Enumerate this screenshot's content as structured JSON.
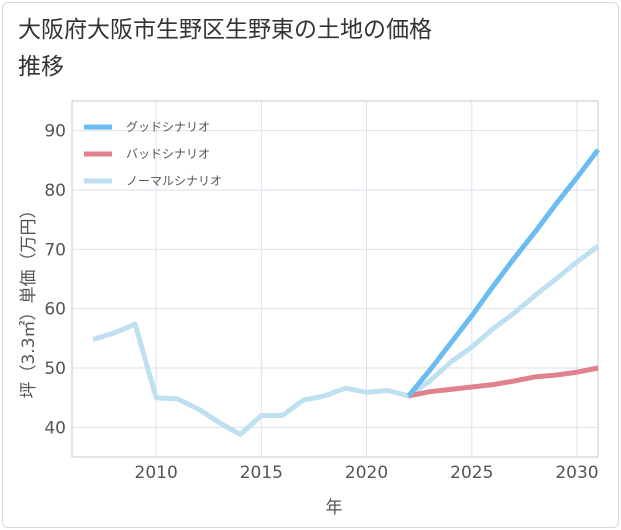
{
  "title": "大阪府大阪市生野区生野東の土地の価格推移",
  "chart_data": {
    "type": "line",
    "xlabel": "年",
    "ylabel": "坪（3.3㎡）単価（万円）",
    "xlim": [
      2006,
      2031
    ],
    "ylim": [
      35,
      95
    ],
    "xticks": [
      2010,
      2015,
      2020,
      2025,
      2030
    ],
    "yticks": [
      40,
      50,
      60,
      70,
      80,
      90
    ],
    "grid": true,
    "legend_position": "top-left",
    "series": [
      {
        "name": "グッドシナリオ",
        "color": "#6bbcf0",
        "x": [
          2022,
          2023,
          2024,
          2025,
          2026,
          2027,
          2028,
          2029,
          2030,
          2031
        ],
        "y": [
          45.3,
          49.6,
          54.2,
          58.8,
          63.7,
          68.4,
          72.9,
          77.6,
          82.1,
          86.8
        ]
      },
      {
        "name": "バッドシナリオ",
        "color": "#e0818e",
        "x": [
          2022,
          2023,
          2024,
          2025,
          2026,
          2027,
          2028,
          2029,
          2030,
          2031
        ],
        "y": [
          45.3,
          46.0,
          46.4,
          46.8,
          47.2,
          47.8,
          48.5,
          48.8,
          49.3,
          50.0
        ]
      },
      {
        "name": "ノーマルシナリオ",
        "color": "#bfe0f0",
        "x": [
          2007,
          2008,
          2009,
          2010,
          2011,
          2012,
          2013,
          2014,
          2015,
          2016,
          2017,
          2018,
          2019,
          2020,
          2021,
          2022,
          2023,
          2024,
          2025,
          2026,
          2027,
          2028,
          2029,
          2030,
          2031
        ],
        "y": [
          54.8,
          55.9,
          57.4,
          45.0,
          44.8,
          43.1,
          40.8,
          38.8,
          42.0,
          42.0,
          44.6,
          45.3,
          46.6,
          45.9,
          46.2,
          45.3,
          47.8,
          51.0,
          53.5,
          56.6,
          59.2,
          62.2,
          65.0,
          67.9,
          70.5
        ]
      }
    ]
  }
}
